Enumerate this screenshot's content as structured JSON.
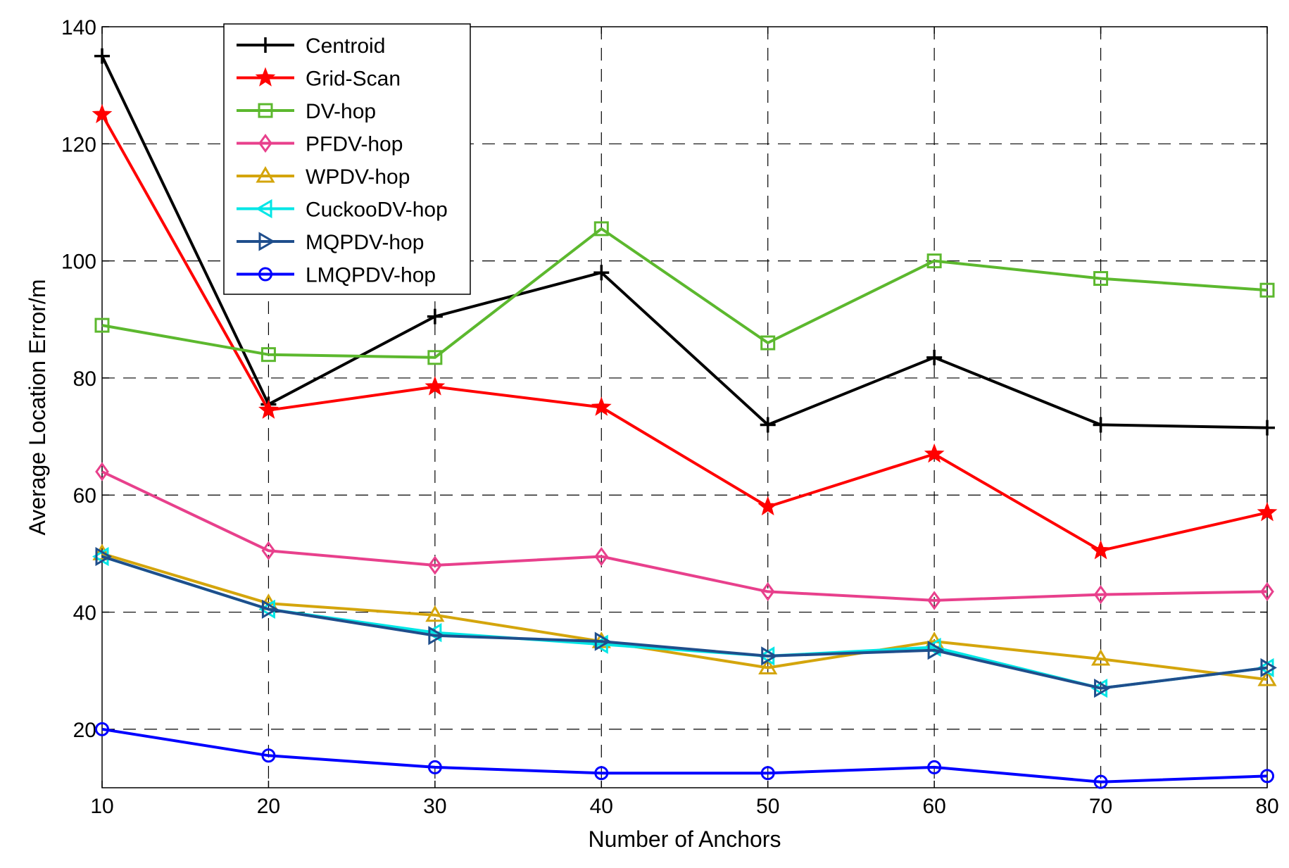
{
  "chart_data": {
    "type": "line",
    "title": "",
    "xlabel": "Number of Anchors",
    "ylabel": "Average Location Error/m",
    "x": [
      10,
      20,
      30,
      40,
      50,
      60,
      70,
      80
    ],
    "xlim": [
      10,
      80
    ],
    "ylim": [
      10,
      140
    ],
    "xticks": [
      10,
      20,
      30,
      40,
      50,
      60,
      70,
      80
    ],
    "yticks": [
      20,
      40,
      60,
      80,
      100,
      120,
      140
    ],
    "grid": true,
    "legend_position": "top-left",
    "series": [
      {
        "name": "Centroid",
        "color": "#000000",
        "marker": "plus",
        "values": [
          135,
          75.5,
          90.5,
          98,
          72,
          83.5,
          72,
          71.5
        ]
      },
      {
        "name": "Grid-Scan",
        "color": "#ff0000",
        "marker": "star",
        "values": [
          125,
          74.5,
          78.5,
          75,
          58,
          67,
          50.5,
          57
        ]
      },
      {
        "name": "DV-hop",
        "color": "#5cb82e",
        "marker": "square",
        "values": [
          89,
          84,
          83.5,
          105.5,
          86,
          100,
          97,
          95
        ]
      },
      {
        "name": "PFDV-hop",
        "color": "#e8408c",
        "marker": "diamond",
        "values": [
          64,
          50.5,
          48,
          49.5,
          43.5,
          42,
          43,
          43.5
        ]
      },
      {
        "name": "WPDV-hop",
        "color": "#d4a50c",
        "marker": "triangle-up",
        "values": [
          50,
          41.5,
          39.5,
          35,
          30.5,
          35,
          32,
          28.5
        ]
      },
      {
        "name": "CuckooDV-hop",
        "color": "#00e6e6",
        "marker": "triangle-left",
        "values": [
          49.5,
          40.5,
          36.5,
          34.5,
          32.5,
          34,
          27,
          30.5
        ]
      },
      {
        "name": "MQPDV-hop",
        "color": "#1f4e8c",
        "marker": "triangle-right",
        "values": [
          49.5,
          40.5,
          36,
          35,
          32.5,
          33.5,
          27,
          30.5
        ]
      },
      {
        "name": "LMQPDV-hop",
        "color": "#0000ff",
        "marker": "circle",
        "values": [
          20,
          15.5,
          13.5,
          12.5,
          12.5,
          13.5,
          11,
          12
        ]
      }
    ]
  }
}
